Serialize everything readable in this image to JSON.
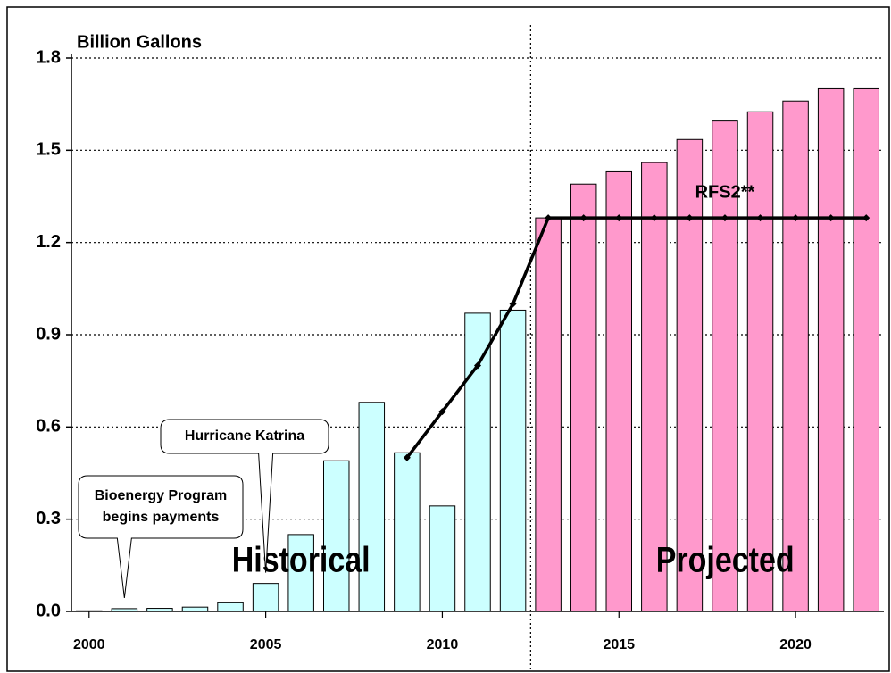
{
  "chart_data": {
    "type": "bar",
    "title": "Billion Gallons",
    "x": [
      2000,
      2001,
      2002,
      2003,
      2004,
      2005,
      2006,
      2007,
      2008,
      2009,
      2010,
      2011,
      2012,
      2013,
      2014,
      2015,
      2016,
      2017,
      2018,
      2019,
      2020,
      2021,
      2022
    ],
    "series": [
      {
        "name": "Historical",
        "color": "#ccffff",
        "values": [
          0.002,
          0.009,
          0.01,
          0.014,
          0.028,
          0.091,
          0.25,
          0.49,
          0.68,
          0.516,
          0.343,
          0.97,
          0.98,
          null,
          null,
          null,
          null,
          null,
          null,
          null,
          null,
          null,
          null
        ]
      },
      {
        "name": "Projected",
        "color": "#ff99cc",
        "values": [
          null,
          null,
          null,
          null,
          null,
          null,
          null,
          null,
          null,
          null,
          null,
          null,
          null,
          1.28,
          1.39,
          1.43,
          1.46,
          1.535,
          1.595,
          1.625,
          1.66,
          1.7,
          1.7
        ]
      },
      {
        "name": "RFS2**",
        "type": "line",
        "color": "#000000",
        "values": [
          null,
          null,
          null,
          null,
          null,
          null,
          null,
          null,
          null,
          0.5,
          0.65,
          0.8,
          1.0,
          1.28,
          1.28,
          1.28,
          1.28,
          1.28,
          1.28,
          1.28,
          1.28,
          1.28,
          1.28
        ]
      }
    ],
    "xlim": [
      1999.5,
      2022.5
    ],
    "xticks": [
      2000,
      2005,
      2010,
      2015,
      2020
    ],
    "ylim": [
      0,
      1.8
    ],
    "yticks": [
      {
        "value": 0,
        "label": "0.0"
      },
      0.3,
      0.6,
      0.9,
      1.2,
      1.5,
      1.8
    ],
    "grid": true,
    "annotations": [
      {
        "text": [
          "Bioenergy Program",
          "begins payments"
        ],
        "x": 2001
      },
      {
        "text": [
          "Hurricane Katrina"
        ],
        "x": 2005
      }
    ]
  }
}
